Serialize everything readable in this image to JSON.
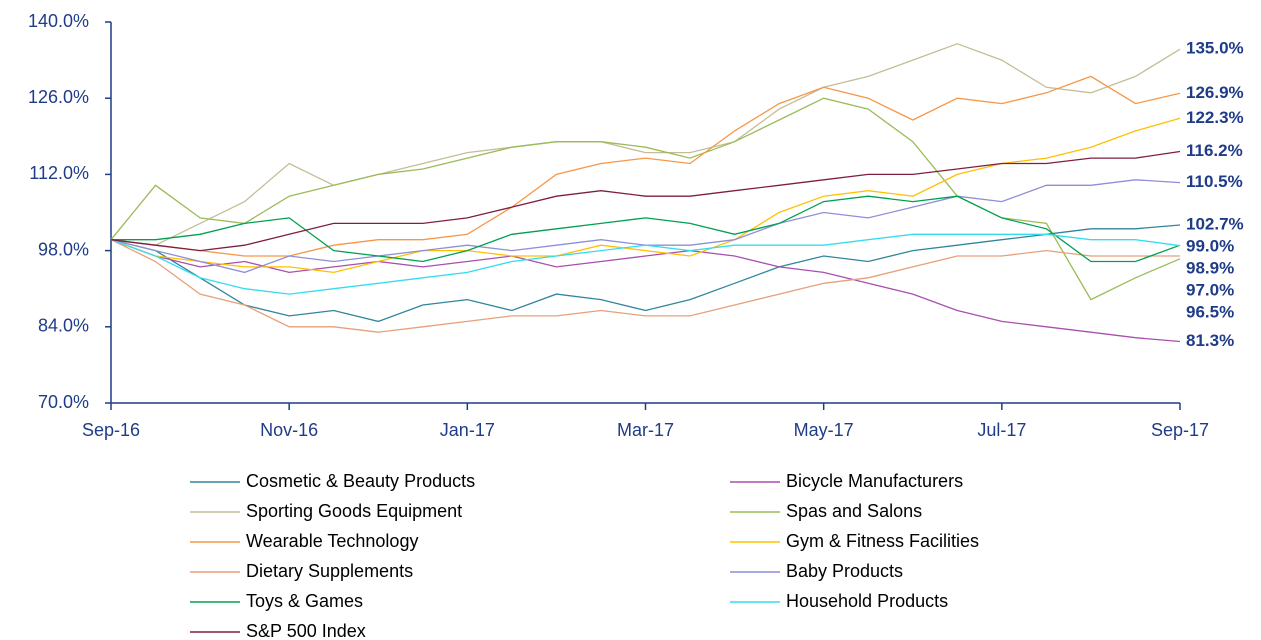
{
  "chart_data": {
    "type": "line",
    "categories": [
      "Sep-16",
      null,
      null,
      null,
      "Nov-16",
      null,
      null,
      null,
      "Jan-17",
      null,
      null,
      null,
      "Mar-17",
      null,
      null,
      null,
      "May-17",
      null,
      null,
      null,
      "Jul-17",
      null,
      null,
      null,
      "Sep-17"
    ],
    "ylim": [
      70,
      140
    ],
    "yticks": [
      {
        "value": 70,
        "label": "70.0%"
      },
      {
        "value": 84,
        "label": "84.0%"
      },
      {
        "value": 98,
        "label": "98.0%"
      },
      {
        "value": 112,
        "label": "112.0%"
      },
      {
        "value": 126,
        "label": "126.0%"
      },
      {
        "value": 140,
        "label": "140.0%"
      }
    ],
    "grid": false,
    "legend": "bottom",
    "series": [
      {
        "name": "Cosmetic & Beauty Products",
        "color": "#31859c",
        "values": [
          100,
          98,
          93,
          88,
          86,
          87,
          85,
          88,
          89,
          87,
          90,
          89,
          87,
          89,
          92,
          95,
          97,
          96,
          98,
          99,
          100,
          101,
          102,
          102,
          102.7
        ],
        "value_labels": [
          null,
          null,
          null,
          null,
          null,
          null,
          null,
          null,
          null,
          null,
          null,
          null,
          null,
          null,
          null,
          null,
          null,
          null,
          null,
          null,
          null,
          null,
          null,
          null,
          "102.7%"
        ]
      },
      {
        "name": "Bicycle Manufacturers",
        "color": "#a94fb0",
        "values": [
          100,
          97,
          95,
          96,
          94,
          95,
          96,
          95,
          96,
          97,
          95,
          96,
          97,
          98,
          97,
          95,
          94,
          92,
          90,
          87,
          85,
          84,
          83,
          82,
          81.3
        ],
        "value_labels": [
          null,
          null,
          null,
          null,
          null,
          null,
          null,
          null,
          null,
          null,
          null,
          null,
          null,
          null,
          null,
          null,
          null,
          null,
          null,
          null,
          null,
          null,
          null,
          null,
          "81.3%"
        ]
      },
      {
        "name": "Sporting Goods Equipment",
        "color": "#c4bd97",
        "values": [
          100,
          99,
          103,
          107,
          114,
          110,
          112,
          114,
          116,
          117,
          118,
          118,
          116,
          116,
          118,
          124,
          128,
          130,
          133,
          136,
          133,
          128,
          127,
          130,
          135.0
        ],
        "value_labels": [
          null,
          null,
          null,
          null,
          null,
          null,
          null,
          null,
          null,
          null,
          null,
          null,
          null,
          null,
          null,
          null,
          null,
          null,
          null,
          null,
          null,
          null,
          null,
          null,
          "135.0%"
        ]
      },
      {
        "name": "Spas and Salons",
        "color": "#9bbb59",
        "values": [
          100,
          110,
          104,
          103,
          108,
          110,
          112,
          113,
          115,
          117,
          118,
          118,
          117,
          115,
          118,
          122,
          126,
          124,
          118,
          108,
          104,
          103,
          89,
          93,
          96.5
        ],
        "value_labels": [
          null,
          null,
          null,
          null,
          null,
          null,
          null,
          null,
          null,
          null,
          null,
          null,
          null,
          null,
          null,
          null,
          null,
          null,
          null,
          null,
          null,
          null,
          null,
          null,
          "96.5%"
        ]
      },
      {
        "name": "Wearable Technology",
        "color": "#f79646",
        "values": [
          100,
          99,
          98,
          97,
          97,
          99,
          100,
          100,
          101,
          106,
          112,
          114,
          115,
          114,
          120,
          125,
          128,
          126,
          122,
          126,
          125,
          127,
          130,
          125,
          126.9
        ],
        "value_labels": [
          null,
          null,
          null,
          null,
          null,
          null,
          null,
          null,
          null,
          null,
          null,
          null,
          null,
          null,
          null,
          null,
          null,
          null,
          null,
          null,
          null,
          null,
          null,
          null,
          "126.9%"
        ]
      },
      {
        "name": "Gym & Fitness Facilities",
        "color": "#ffc000",
        "values": [
          100,
          97,
          96,
          95,
          95,
          94,
          96,
          98,
          98,
          97,
          97,
          99,
          98,
          97,
          100,
          105,
          108,
          109,
          108,
          112,
          114,
          115,
          117,
          120,
          122.3
        ],
        "value_labels": [
          null,
          null,
          null,
          null,
          null,
          null,
          null,
          null,
          null,
          null,
          null,
          null,
          null,
          null,
          null,
          null,
          null,
          null,
          null,
          null,
          null,
          null,
          null,
          null,
          "122.3%"
        ]
      },
      {
        "name": "Dietary Supplements",
        "color": "#e6a07a",
        "values": [
          100,
          96,
          90,
          88,
          84,
          84,
          83,
          84,
          85,
          86,
          86,
          87,
          86,
          86,
          88,
          90,
          92,
          93,
          95,
          97,
          97,
          98,
          97,
          97,
          97.0
        ],
        "value_labels": [
          null,
          null,
          null,
          null,
          null,
          null,
          null,
          null,
          null,
          null,
          null,
          null,
          null,
          null,
          null,
          null,
          null,
          null,
          null,
          null,
          null,
          null,
          null,
          null,
          "97.0%"
        ]
      },
      {
        "name": "Baby Products",
        "color": "#8e8ed9",
        "values": [
          100,
          98,
          96,
          94,
          97,
          96,
          97,
          98,
          99,
          98,
          99,
          100,
          99,
          99,
          100,
          103,
          105,
          104,
          106,
          108,
          107,
          110,
          110,
          111,
          110.5
        ],
        "value_labels": [
          null,
          null,
          null,
          null,
          null,
          null,
          null,
          null,
          null,
          null,
          null,
          null,
          null,
          null,
          null,
          null,
          null,
          null,
          null,
          null,
          null,
          null,
          null,
          null,
          "110.5%"
        ]
      },
      {
        "name": "Toys & Games",
        "color": "#00a050",
        "values": [
          100,
          100,
          101,
          103,
          104,
          98,
          97,
          96,
          98,
          101,
          102,
          103,
          104,
          103,
          101,
          103,
          107,
          108,
          107,
          108,
          104,
          102,
          96,
          96,
          99.0
        ],
        "value_labels": [
          null,
          null,
          null,
          null,
          null,
          null,
          null,
          null,
          null,
          null,
          null,
          null,
          null,
          null,
          null,
          null,
          null,
          null,
          null,
          null,
          null,
          null,
          null,
          null,
          "99.0%"
        ]
      },
      {
        "name": "Household Products",
        "color": "#33ddee",
        "values": [
          100,
          97,
          93,
          91,
          90,
          91,
          92,
          93,
          94,
          96,
          97,
          98,
          99,
          98,
          99,
          99,
          99,
          100,
          101,
          101,
          101,
          101,
          100,
          100,
          98.9
        ],
        "value_labels": [
          null,
          null,
          null,
          null,
          null,
          null,
          null,
          null,
          null,
          null,
          null,
          null,
          null,
          null,
          null,
          null,
          null,
          null,
          null,
          null,
          null,
          null,
          null,
          null,
          "98.9%"
        ]
      },
      {
        "name": "S&P 500 Index",
        "color": "#7f1f3f",
        "values": [
          100,
          99,
          98,
          99,
          101,
          103,
          103,
          103,
          104,
          106,
          108,
          109,
          108,
          108,
          109,
          110,
          111,
          112,
          112,
          113,
          114,
          114,
          115,
          115,
          116.2
        ],
        "value_labels": [
          null,
          null,
          null,
          null,
          null,
          null,
          null,
          null,
          null,
          null,
          null,
          null,
          null,
          null,
          null,
          null,
          null,
          null,
          null,
          null,
          null,
          null,
          null,
          null,
          "116.2%"
        ]
      }
    ]
  }
}
